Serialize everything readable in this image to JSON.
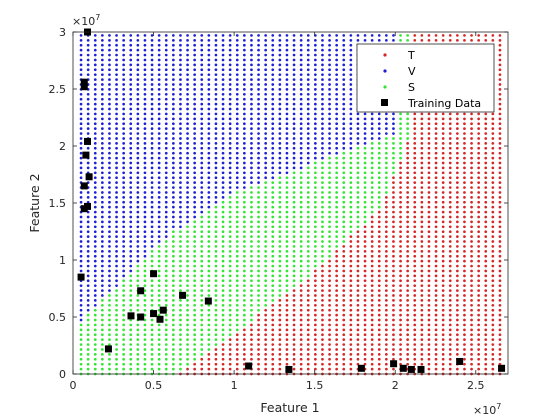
{
  "chart_data": {
    "type": "scatter",
    "title": "",
    "xlabel": "Feature 1",
    "ylabel": "Feature 2",
    "x_exponent_label": "×10",
    "x_exponent_power": "7",
    "y_exponent_label": "×10",
    "y_exponent_power": "7",
    "x_scale": 10000000,
    "y_scale": 10000000,
    "xlim": [
      0,
      27000000
    ],
    "ylim": [
      0,
      30000000
    ],
    "xticks": [
      0,
      5000000,
      10000000,
      15000000,
      20000000,
      25000000
    ],
    "xtick_labels": [
      "0",
      "0.5",
      "1",
      "1.5",
      "2",
      "2.5"
    ],
    "yticks": [
      0,
      5000000,
      10000000,
      15000000,
      20000000,
      25000000,
      30000000
    ],
    "ytick_labels": [
      "0",
      "0.5",
      "1",
      "1.5",
      "2",
      "2.5",
      "3"
    ],
    "grid": false,
    "legend_position": "top-right",
    "decision_grid": {
      "x_start": 500000,
      "x_end": 26500000,
      "y_start": 0,
      "y_end": 29700000,
      "cols": 60,
      "rows": 70
    },
    "region_rule": "V above the V/S boundary; T below the S/T boundary; S between",
    "v_s_boundary": [
      [
        500000,
        4700000
      ],
      [
        6000000,
        12300000
      ],
      [
        10000000,
        15900000
      ],
      [
        15000000,
        18500000
      ],
      [
        19000000,
        20600000
      ],
      [
        20300000,
        21200000
      ]
    ],
    "s_t_boundary": [
      [
        6500000,
        0
      ],
      [
        10000000,
        3500000
      ],
      [
        15000000,
        9000000
      ],
      [
        19000000,
        14500000
      ],
      [
        20300000,
        18500000
      ],
      [
        21000000,
        21200000
      ]
    ],
    "series": [
      {
        "name": "T",
        "color": "#d62728",
        "marker": "dot"
      },
      {
        "name": "V",
        "color": "#1f1fd6",
        "marker": "dot"
      },
      {
        "name": "S",
        "color": "#33e633",
        "marker": "dot"
      },
      {
        "name": "Training Data",
        "color": "#000000",
        "marker": "square",
        "points": [
          [
            900000,
            30000000
          ],
          [
            700000,
            25600000
          ],
          [
            700000,
            25200000
          ],
          [
            900000,
            20400000
          ],
          [
            800000,
            19200000
          ],
          [
            1000000,
            17300000
          ],
          [
            700000,
            16500000
          ],
          [
            900000,
            14700000
          ],
          [
            700000,
            14500000
          ],
          [
            500000,
            8500000
          ],
          [
            5000000,
            8800000
          ],
          [
            4200000,
            7300000
          ],
          [
            6800000,
            6900000
          ],
          [
            8400000,
            6400000
          ],
          [
            5600000,
            5600000
          ],
          [
            5000000,
            5300000
          ],
          [
            3600000,
            5100000
          ],
          [
            4200000,
            5000000
          ],
          [
            5400000,
            4800000
          ],
          [
            2200000,
            2200000
          ],
          [
            10900000,
            700000
          ],
          [
            13400000,
            400000
          ],
          [
            17900000,
            500000
          ],
          [
            19900000,
            900000
          ],
          [
            20500000,
            500000
          ],
          [
            21000000,
            400000
          ],
          [
            21600000,
            400000
          ],
          [
            24000000,
            1100000
          ],
          [
            26600000,
            500000
          ]
        ]
      }
    ]
  }
}
